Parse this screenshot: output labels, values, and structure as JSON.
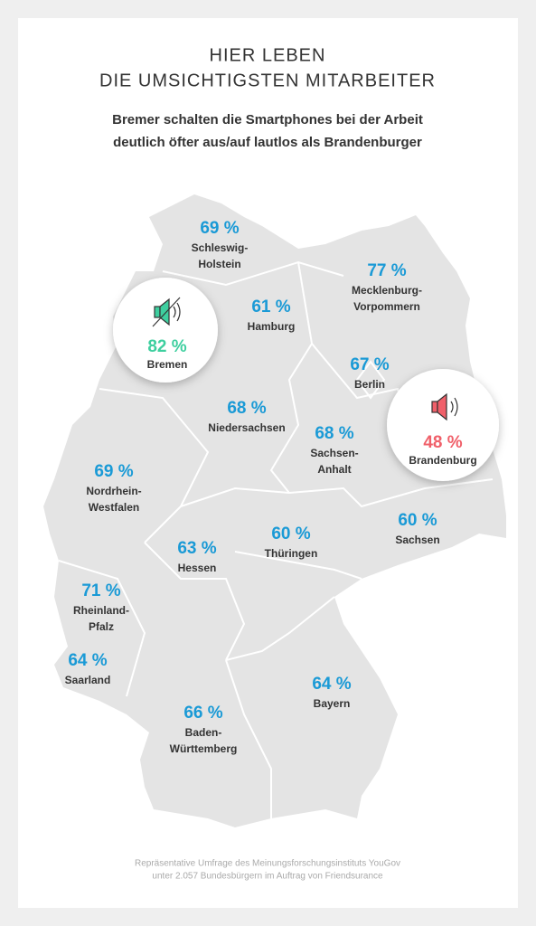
{
  "header": {
    "title_lines": [
      "HIER LEBEN",
      "DIE UMSICHTIGSTEN MITARBEITER"
    ],
    "subtitle_lines": [
      "Bremer schalten die Smartphones bei der Arbeit",
      "deutlich öfter aus/auf lautlos als Brandenburger"
    ]
  },
  "regions": [
    {
      "share": "69 %",
      "name_lines": [
        "Schleswig-",
        "Holstein"
      ]
    },
    {
      "share": "77 %",
      "name_lines": [
        "Mecklenburg-",
        "Vorpommern"
      ]
    },
    {
      "share": "61 %",
      "name_lines": [
        "Hamburg"
      ]
    },
    {
      "share": "67 %",
      "name_lines": [
        "Berlin"
      ]
    },
    {
      "share": "68 %",
      "name_lines": [
        "Niedersachsen"
      ]
    },
    {
      "share": "68 %",
      "name_lines": [
        "Sachsen-",
        "Anhalt"
      ]
    },
    {
      "share": "69 %",
      "name_lines": [
        "Nordrhein-",
        "Westfalen"
      ]
    },
    {
      "share": "60 %",
      "name_lines": [
        "Sachsen"
      ]
    },
    {
      "share": "60 %",
      "name_lines": [
        "Thüringen"
      ]
    },
    {
      "share": "63 %",
      "name_lines": [
        "Hessen"
      ]
    },
    {
      "share": "71 %",
      "name_lines": [
        "Rheinland-",
        "Pfalz"
      ]
    },
    {
      "share": "64 %",
      "name_lines": [
        "Saarland"
      ]
    },
    {
      "share": "64 %",
      "name_lines": [
        "Bayern"
      ]
    },
    {
      "share": "66 %",
      "name_lines": [
        "Baden-",
        "Württemberg"
      ]
    }
  ],
  "highlights": [
    {
      "share": "82 %",
      "name": "Bremen"
    },
    {
      "share": "48 %",
      "name": "Brandenburg"
    }
  ],
  "footnote_lines": [
    "Repräsentative Umfrage des Meinungsforschungsinstituts YouGov",
    "unter 2.057 Bundesbürgern im Auftrag von Friendsurance"
  ]
}
